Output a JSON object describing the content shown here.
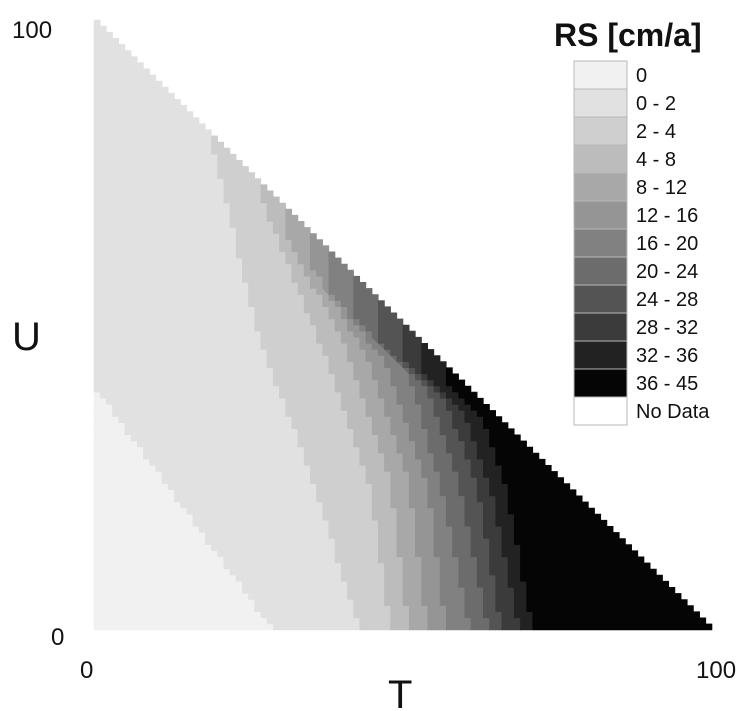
{
  "chart_data": {
    "type": "heatmap",
    "title": "RS [cm/a]",
    "xlabel": "T",
    "ylabel": "U",
    "xlim": [
      0,
      100
    ],
    "ylim": [
      0,
      100
    ],
    "x_ticks": [
      "0",
      "100"
    ],
    "y_ticks": [
      "0",
      "100"
    ],
    "legend_title": "RS [cm/a]",
    "legend_position": "top-right",
    "classes": [
      {
        "label": "0",
        "color": "#f1f1f1"
      },
      {
        "label": "0 - 2",
        "color": "#e1e1e1"
      },
      {
        "label": "2 - 4",
        "color": "#cfcfcf"
      },
      {
        "label": "4 - 8",
        "color": "#bcbcbc"
      },
      {
        "label": "8 - 12",
        "color": "#a8a8a8"
      },
      {
        "label": "12 - 16",
        "color": "#959595"
      },
      {
        "label": "16 - 20",
        "color": "#818181"
      },
      {
        "label": "20 - 24",
        "color": "#6c6c6c"
      },
      {
        "label": "24 - 28",
        "color": "#545454"
      },
      {
        "label": "28 - 32",
        "color": "#3b3b3b"
      },
      {
        "label": "32 - 36",
        "color": "#222222"
      },
      {
        "label": "36 - 45",
        "color": "#050505"
      },
      {
        "label": "No Data",
        "color": "#ffffff"
      }
    ],
    "class_boundaries": [
      {
        "between": "0 | 0 - 2",
        "points": [
          [
            0,
            40
          ],
          [
            29,
            0
          ]
        ]
      },
      {
        "between": "0 - 2 | 2 - 4",
        "points": [
          [
            19,
            80
          ],
          [
            27,
            47
          ],
          [
            35,
            26
          ],
          [
            43,
            0
          ]
        ]
      },
      {
        "between": "2 - 4 | 4 - 8",
        "points": [
          [
            27,
            71
          ],
          [
            37,
            46
          ],
          [
            45,
            22
          ],
          [
            48,
            0
          ]
        ]
      },
      {
        "between": "4 - 8 | 8 - 12",
        "points": [
          [
            31,
            65
          ],
          [
            41,
            46
          ],
          [
            48,
            24
          ],
          [
            51,
            0
          ]
        ]
      },
      {
        "between": "8 - 12 | 12 - 16",
        "points": [
          [
            35,
            60
          ],
          [
            44,
            45
          ],
          [
            51,
            24
          ],
          [
            54,
            0
          ]
        ]
      },
      {
        "between": "12 - 16 | 16 - 20",
        "points": [
          [
            38,
            56
          ],
          [
            47,
            44
          ],
          [
            54,
            24
          ],
          [
            57,
            0
          ]
        ]
      },
      {
        "between": "16 - 20 | 20 - 24",
        "points": [
          [
            42,
            52
          ],
          [
            51,
            42
          ],
          [
            56,
            24
          ],
          [
            61,
            0
          ]
        ]
      },
      {
        "between": "20 - 24 | 24 - 28",
        "points": [
          [
            46,
            48
          ],
          [
            54,
            39
          ],
          [
            59,
            24
          ],
          [
            64,
            0
          ]
        ]
      },
      {
        "between": "24 - 28 | 28 - 32",
        "points": [
          [
            50,
            44
          ],
          [
            57,
            37
          ],
          [
            62,
            24
          ],
          [
            66,
            0
          ]
        ]
      },
      {
        "between": "28 - 32 | 32 - 36",
        "points": [
          [
            53,
            42
          ],
          [
            60,
            35
          ],
          [
            64,
            24
          ],
          [
            69,
            0
          ]
        ]
      },
      {
        "between": "32 - 36 | 36 - 45",
        "points": [
          [
            57,
            40
          ],
          [
            63,
            34
          ],
          [
            67,
            22
          ],
          [
            71,
            0
          ]
        ]
      }
    ]
  }
}
